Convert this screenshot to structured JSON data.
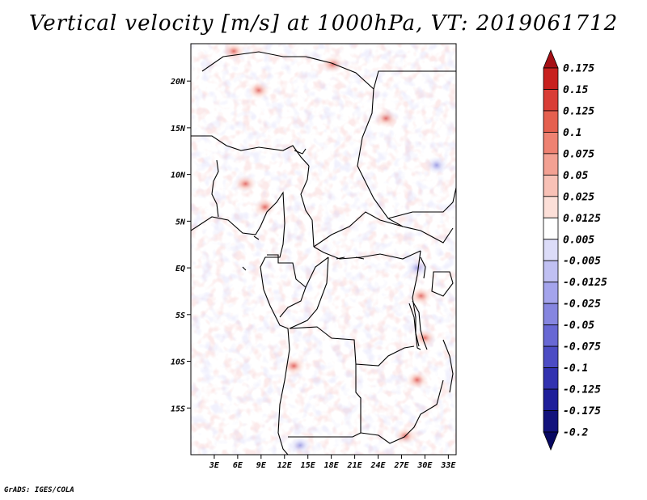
{
  "title": "Vertical velocity [m/s] at 1000hPa, VT: 2019061712",
  "credit": "GrADS: IGES/COLA",
  "map": {
    "lon_range": [
      0,
      34
    ],
    "lat_range": [
      -20,
      24
    ],
    "lon_ticks": [
      {
        "value": 3,
        "label": "3E"
      },
      {
        "value": 6,
        "label": "6E"
      },
      {
        "value": 9,
        "label": "9E"
      },
      {
        "value": 12,
        "label": "12E"
      },
      {
        "value": 15,
        "label": "15E"
      },
      {
        "value": 18,
        "label": "18E"
      },
      {
        "value": 21,
        "label": "21E"
      },
      {
        "value": 24,
        "label": "24E"
      },
      {
        "value": 27,
        "label": "27E"
      },
      {
        "value": 30,
        "label": "30E"
      },
      {
        "value": 33,
        "label": "33E"
      }
    ],
    "lat_ticks": [
      {
        "value": 20,
        "label": "20N"
      },
      {
        "value": 15,
        "label": "15N"
      },
      {
        "value": 10,
        "label": "10N"
      },
      {
        "value": 5,
        "label": "5N"
      },
      {
        "value": 0,
        "label": "EQ"
      },
      {
        "value": -5,
        "label": "5S"
      },
      {
        "value": -10,
        "label": "10S"
      },
      {
        "value": -15,
        "label": "15S"
      }
    ],
    "field_hotspots": [
      {
        "lon": 8.7,
        "lat": 19.0,
        "sign": 1
      },
      {
        "lon": 18.2,
        "lat": 21.8,
        "sign": 1
      },
      {
        "lon": 5.5,
        "lat": 23.2,
        "sign": 1
      },
      {
        "lon": 25.0,
        "lat": 16.0,
        "sign": 1
      },
      {
        "lon": 9.5,
        "lat": 6.5,
        "sign": 1
      },
      {
        "lon": 7.0,
        "lat": 9.0,
        "sign": 1
      },
      {
        "lon": 29.5,
        "lat": -3.0,
        "sign": 1
      },
      {
        "lon": 30.0,
        "lat": -7.5,
        "sign": 1
      },
      {
        "lon": 13.2,
        "lat": -10.5,
        "sign": 1
      },
      {
        "lon": 29.0,
        "lat": -12.0,
        "sign": 1
      },
      {
        "lon": 27.5,
        "lat": -18.0,
        "sign": 1
      },
      {
        "lon": 14.0,
        "lat": -19.0,
        "sign": -1
      },
      {
        "lon": 29.0,
        "lat": 0.0,
        "sign": -1
      },
      {
        "lon": 31.5,
        "lat": 11.0,
        "sign": -1
      }
    ]
  },
  "colorbar": {
    "levels": [
      "0.175",
      "0.15",
      "0.125",
      "0.1",
      "0.075",
      "0.05",
      "0.025",
      "0.0125",
      "0.005",
      "-0.005",
      "-0.0125",
      "-0.025",
      "-0.05",
      "-0.075",
      "-0.1",
      "-0.125",
      "-0.175",
      "-0.2"
    ],
    "colors": [
      "#a50f15",
      "#c8201e",
      "#d93d36",
      "#e5604f",
      "#ee8272",
      "#f3a193",
      "#f8c1b6",
      "#fcdfd8",
      "#ffffff",
      "#dcdcf8",
      "#c0c0f2",
      "#a4a4ec",
      "#8686e0",
      "#6868d4",
      "#4c4cc4",
      "#3232b0",
      "#1e1e9a",
      "#12127c",
      "#080862"
    ]
  }
}
